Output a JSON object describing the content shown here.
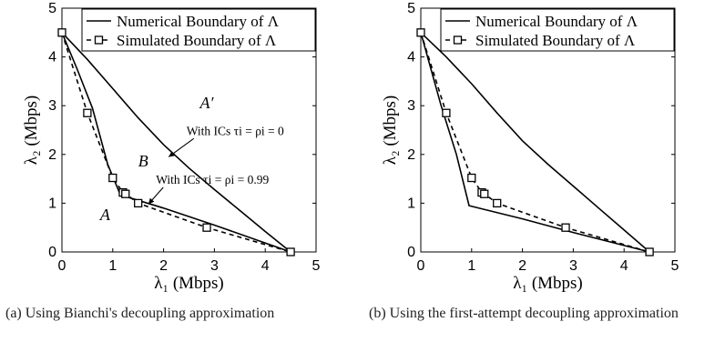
{
  "chart_data": [
    {
      "type": "line",
      "panel": "a",
      "caption": "(a) Using Bianchi's decoupling approximation",
      "xlabel": "λ₁ (Mbps)",
      "ylabel": "λ₂ (Mbps)",
      "xlim": [
        0,
        5
      ],
      "ylim": [
        0,
        5
      ],
      "xticks": [
        "0",
        "1",
        "2",
        "3",
        "4",
        "5"
      ],
      "yticks": [
        "0",
        "1",
        "2",
        "3",
        "4",
        "5"
      ],
      "legend_position": "top-right",
      "series": [
        {
          "name": "Numerical Boundary of Λ",
          "style": "solid",
          "marker": "none",
          "segments": [
            [
              [
                0,
                4.5
              ],
              [
                0.3,
                3.75
              ],
              [
                0.6,
                2.95
              ],
              [
                0.9,
                1.8
              ],
              [
                1.15,
                1.17
              ],
              [
                2.0,
                0.9
              ],
              [
                3.0,
                0.55
              ],
              [
                4.5,
                0
              ]
            ],
            [
              [
                0,
                4.5
              ],
              [
                0.5,
                3.95
              ],
              [
                1.0,
                3.35
              ],
              [
                1.5,
                2.75
              ],
              [
                2.0,
                2.2
              ],
              [
                2.5,
                1.72
              ],
              [
                3.0,
                1.28
              ],
              [
                3.5,
                0.85
              ],
              [
                4.0,
                0.42
              ],
              [
                4.5,
                0
              ]
            ]
          ]
        },
        {
          "name": "Simulated Boundary of Λ",
          "style": "dashed",
          "marker": "square",
          "points": [
            [
              0,
              4.5
            ],
            [
              0.5,
              2.85
            ],
            [
              1.0,
              1.52
            ],
            [
              1.2,
              1.22
            ],
            [
              1.25,
              1.19
            ],
            [
              1.5,
              1.0
            ],
            [
              2.85,
              0.5
            ],
            [
              4.5,
              0
            ]
          ]
        }
      ],
      "annotations": [
        {
          "text": "A′",
          "x": 2.85,
          "y": 2.95
        },
        {
          "text": "B",
          "x": 1.6,
          "y": 1.75
        },
        {
          "text": "A",
          "x": 0.85,
          "y": 0.65
        },
        {
          "text": "With ICs τi = ρi = 0",
          "x": 2.45,
          "y": 2.4,
          "arrow_to": [
            2.1,
            1.95
          ]
        },
        {
          "text": "With ICs τi = ρi = 0.99",
          "x": 1.85,
          "y": 1.4,
          "arrow_to": [
            1.7,
            0.98
          ]
        }
      ]
    },
    {
      "type": "line",
      "panel": "b",
      "caption": "(b) Using the first-attempt decoupling approximation",
      "xlabel": "λ₁ (Mbps)",
      "ylabel": "λ₂ (Mbps)",
      "xlim": [
        0,
        5
      ],
      "ylim": [
        0,
        5
      ],
      "xticks": [
        "0",
        "1",
        "2",
        "3",
        "4",
        "5"
      ],
      "yticks": [
        "0",
        "1",
        "2",
        "3",
        "4",
        "5"
      ],
      "legend_position": "top-right",
      "series": [
        {
          "name": "Numerical Boundary of Λ",
          "style": "solid",
          "marker": "none",
          "segments": [
            [
              [
                0,
                4.5
              ],
              [
                0.4,
                3.0
              ],
              [
                0.7,
                2.0
              ],
              [
                0.95,
                0.95
              ],
              [
                2.0,
                0.68
              ],
              [
                3.0,
                0.4
              ],
              [
                4.5,
                0
              ]
            ],
            [
              [
                0,
                4.5
              ],
              [
                0.5,
                4.0
              ],
              [
                1.0,
                3.45
              ],
              [
                1.5,
                2.85
              ],
              [
                2.0,
                2.28
              ],
              [
                2.5,
                1.8
              ],
              [
                3.0,
                1.35
              ],
              [
                3.5,
                0.9
              ],
              [
                4.0,
                0.45
              ],
              [
                4.5,
                0
              ]
            ]
          ]
        },
        {
          "name": "Simulated Boundary of Λ",
          "style": "dashed",
          "marker": "square",
          "points": [
            [
              0,
              4.5
            ],
            [
              0.5,
              2.85
            ],
            [
              1.0,
              1.52
            ],
            [
              1.2,
              1.22
            ],
            [
              1.25,
              1.19
            ],
            [
              1.5,
              1.0
            ],
            [
              2.85,
              0.5
            ],
            [
              4.5,
              0
            ]
          ]
        }
      ],
      "annotations": []
    }
  ]
}
